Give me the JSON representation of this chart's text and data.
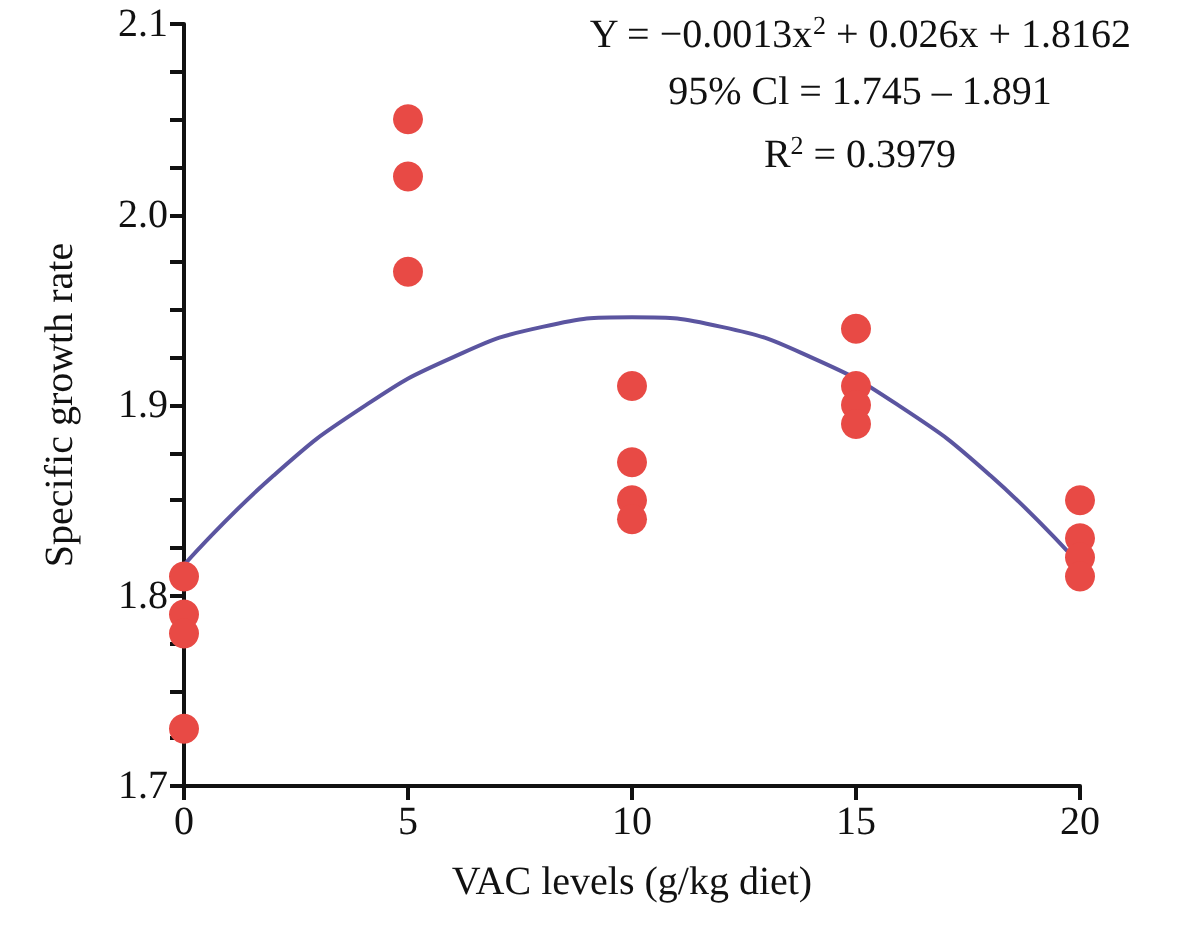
{
  "chart_data": {
    "type": "scatter",
    "xlabel": "VAC levels (g/kg diet)",
    "ylabel": "Specific growth rate",
    "xlim": [
      0,
      20
    ],
    "xticks": [
      0,
      5,
      10,
      15,
      20
    ],
    "ylim": [
      1.7,
      2.1
    ],
    "yticks": [
      1.7,
      {
        "value": 1.725,
        "label": null
      },
      {
        "value": 1.75,
        "label": null
      },
      {
        "value": 1.775,
        "label": null
      },
      1.8,
      {
        "value": 1.825,
        "label": null
      },
      {
        "value": 1.85,
        "label": null
      },
      {
        "value": 1.875,
        "label": null
      },
      1.9,
      {
        "value": 1.925,
        "label": null
      },
      {
        "value": 1.95,
        "label": null
      },
      {
        "value": 1.975,
        "label": null
      },
      {
        "value": 2,
        "label": "2.0"
      },
      {
        "value": 2.025,
        "label": null
      },
      {
        "value": 2.05,
        "label": null
      },
      {
        "value": 2.075,
        "label": null
      },
      2.1
    ],
    "grid": false,
    "marker": "circle",
    "series": [
      {
        "color": "#e84a45",
        "x": [
          0,
          0,
          0,
          0,
          5,
          5,
          5,
          10,
          10,
          10,
          10,
          15,
          15,
          15,
          15,
          20,
          20,
          20,
          20
        ],
        "values": [
          1.81,
          1.79,
          1.78,
          1.73,
          2.05,
          2.02,
          1.97,
          1.91,
          1.87,
          1.85,
          1.84,
          1.94,
          1.91,
          1.9,
          1.89,
          1.85,
          1.83,
          1.82,
          1.81
        ]
      },
      {
        "type": "line",
        "color": "#5b55a0",
        "marker": "none",
        "x": [
          0,
          2,
          4,
          6,
          8,
          10,
          12,
          14,
          16,
          18,
          20
        ],
        "values": [
          1.816,
          1.863,
          1.899,
          1.925,
          1.941,
          1.946,
          1.941,
          1.925,
          1.899,
          1.863,
          1.816
        ]
      }
    ],
    "annotations": [
      "Y = −0.0013x$^{2}$ + 0.026x + 1.8162",
      "95% Cl = 1.745 – 1.891",
      "R$^{2}$ = 0.3979"
    ]
  }
}
